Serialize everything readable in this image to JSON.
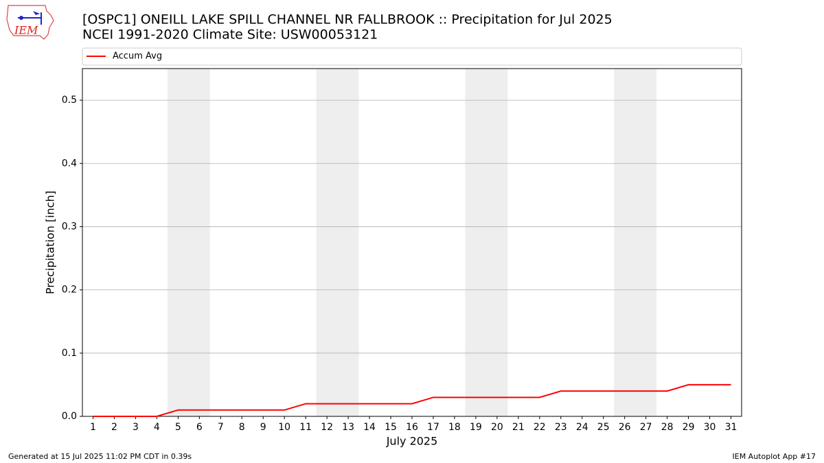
{
  "chart_data": {
    "type": "line",
    "title": "[OSPC1] ONEILL LAKE SPILL CHANNEL NR FALLBROOK :: Precipitation for Jul 2025",
    "subtitle": "NCEI 1991-2020 Climate Site: USW00053121",
    "xlabel": "July 2025",
    "ylabel": "Precipitation [inch]",
    "x": [
      1,
      2,
      3,
      4,
      5,
      6,
      7,
      8,
      9,
      10,
      11,
      12,
      13,
      14,
      15,
      16,
      17,
      18,
      19,
      20,
      21,
      22,
      23,
      24,
      25,
      26,
      27,
      28,
      29,
      30,
      31
    ],
    "series": [
      {
        "name": "Accum Avg",
        "color": "#ff0000",
        "values": [
          0,
          0,
          0,
          0,
          0.01,
          0.01,
          0.01,
          0.01,
          0.01,
          0.01,
          0.02,
          0.02,
          0.02,
          0.02,
          0.02,
          0.02,
          0.03,
          0.03,
          0.03,
          0.03,
          0.03,
          0.03,
          0.04,
          0.04,
          0.04,
          0.04,
          0.04,
          0.04,
          0.05,
          0.05,
          0.05
        ]
      }
    ],
    "xlim": [
      0.5,
      31.5
    ],
    "xticks": [
      1,
      2,
      3,
      4,
      5,
      6,
      7,
      8,
      9,
      10,
      11,
      12,
      13,
      14,
      15,
      16,
      17,
      18,
      19,
      20,
      21,
      22,
      23,
      24,
      25,
      26,
      27,
      28,
      29,
      30,
      31
    ],
    "ylim": [
      0,
      0.55
    ],
    "yticks": [
      {
        "value": 0,
        "label": "0.0"
      },
      0.1,
      0.2,
      0.3,
      0.4,
      0.5
    ],
    "grid": true,
    "legend": "top",
    "shaded_ranges": [
      [
        4.5,
        6.5
      ],
      [
        11.5,
        13.5
      ],
      [
        18.5,
        20.5
      ],
      [
        25.5,
        27.5
      ]
    ],
    "shade_color": "#eeeeee"
  },
  "logo_text": "IEM",
  "footer_left": "Generated at 15 Jul 2025 11:02 PM CDT in 0.39s",
  "footer_right": "IEM Autoplot App #17"
}
